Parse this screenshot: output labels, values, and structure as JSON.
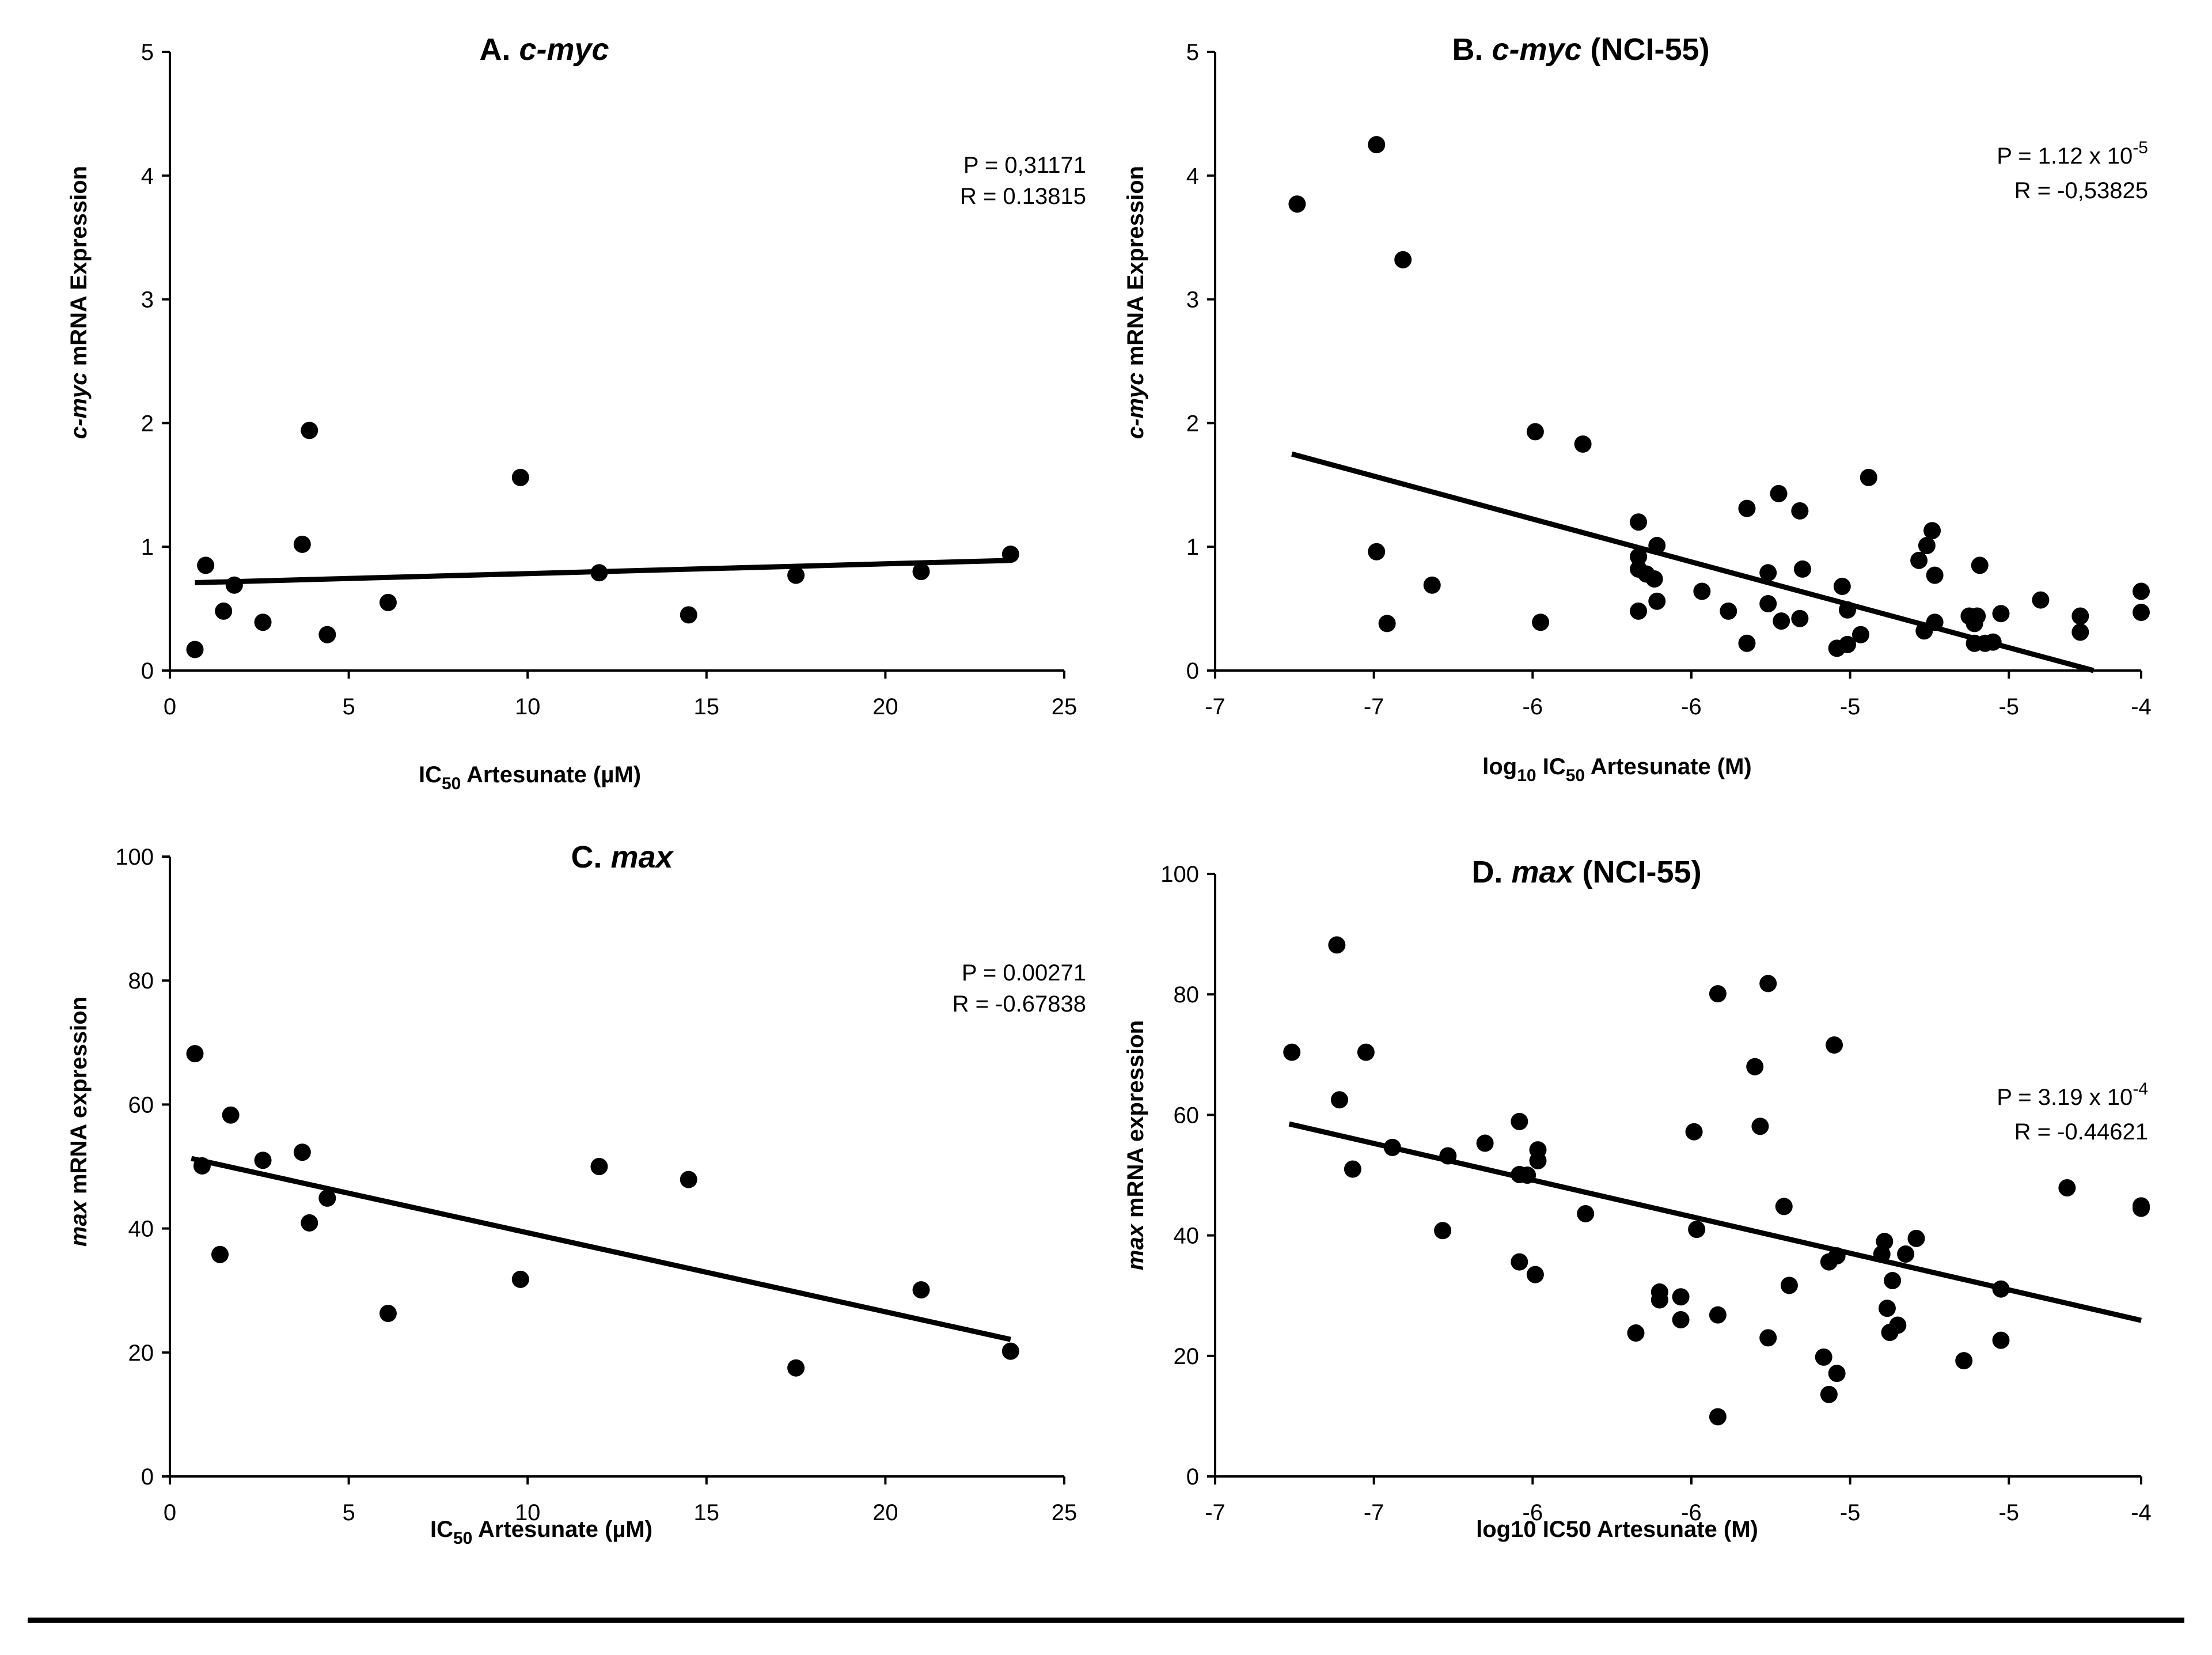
{
  "figure": {
    "colors": {
      "foreground": "#000000",
      "background": "#ffffff"
    }
  },
  "chart_data": [
    {
      "id": "A",
      "type": "scatter",
      "title": {
        "prefix": "A. ",
        "gene": "c-myc",
        "suffix": ""
      },
      "ylabel": {
        "gene": "c-myc",
        "rest": " mRNA Expression"
      },
      "xlabel": {
        "pre": "IC",
        "sub": "50",
        "post": " Artesunate (µM)"
      },
      "stats": {
        "p": "P = 0,31171",
        "r": "R = 0.13815"
      },
      "xlim": [
        0,
        25
      ],
      "ylim": [
        0,
        5
      ],
      "xticks": [
        0,
        5,
        10,
        15,
        20,
        25
      ],
      "xtick_labels": [
        "0",
        "5",
        "10",
        "15",
        "20",
        "25"
      ],
      "yticks": [
        0,
        1,
        2,
        3,
        4,
        5
      ],
      "ytick_labels": [
        "0",
        "1",
        "2",
        "3",
        "4",
        "5"
      ],
      "points": [
        [
          0.7,
          0.17
        ],
        [
          1.0,
          0.85
        ],
        [
          1.5,
          0.48
        ],
        [
          1.8,
          0.69
        ],
        [
          2.6,
          0.39
        ],
        [
          3.7,
          1.02
        ],
        [
          3.9,
          1.94
        ],
        [
          4.4,
          0.29
        ],
        [
          6.1,
          0.55
        ],
        [
          9.8,
          1.56
        ],
        [
          12.0,
          0.79
        ],
        [
          14.5,
          0.45
        ],
        [
          17.5,
          0.77
        ],
        [
          21.0,
          0.8
        ],
        [
          23.5,
          0.94
        ]
      ],
      "trendline": [
        [
          0.7,
          0.71
        ],
        [
          23.5,
          0.89
        ]
      ]
    },
    {
      "id": "B",
      "type": "scatter",
      "title": {
        "prefix": "B. ",
        "gene": "c-myc",
        "suffix": " (NCI-55)"
      },
      "ylabel": {
        "gene": "c-myc",
        "rest": " mRNA Expression"
      },
      "xlabel": {
        "pre": "log",
        "sub": "10",
        "mid": " IC",
        "sub2": "50",
        "post": " Artesunate (M)"
      },
      "stats": {
        "p": "P = 1.12 x 10",
        "p_exp": "-5",
        "r": "R = -0,53825"
      },
      "xlim": [
        -7.5,
        -4.0
      ],
      "ylim": [
        0,
        5
      ],
      "xticks": [
        -7.5,
        -6.9,
        -6.3,
        -5.7,
        -5.1,
        -4.5,
        -4.0
      ],
      "xtick_labels": [
        "-7",
        "-7",
        "-6",
        "-6",
        "-5",
        "-5",
        "-4"
      ],
      "yticks": [
        0,
        1,
        2,
        3,
        4,
        5
      ],
      "ytick_labels": [
        "0",
        "1",
        "2",
        "3",
        "4",
        "5"
      ],
      "points": [
        [
          -7.19,
          3.77
        ],
        [
          -6.89,
          4.25
        ],
        [
          -6.79,
          3.32
        ],
        [
          -6.29,
          1.93
        ],
        [
          -6.11,
          1.83
        ],
        [
          -6.89,
          0.96
        ],
        [
          -6.85,
          0.38
        ],
        [
          -6.68,
          0.69
        ],
        [
          -6.27,
          0.39
        ],
        [
          -5.9,
          1.2
        ],
        [
          -5.9,
          0.92
        ],
        [
          -5.9,
          0.82
        ],
        [
          -5.9,
          0.48
        ],
        [
          -5.87,
          0.78
        ],
        [
          -5.84,
          0.74
        ],
        [
          -5.83,
          1.01
        ],
        [
          -5.83,
          0.56
        ],
        [
          -5.66,
          0.64
        ],
        [
          -5.56,
          0.48
        ],
        [
          -5.49,
          1.31
        ],
        [
          -5.49,
          0.22
        ],
        [
          -5.41,
          0.79
        ],
        [
          -5.41,
          0.54
        ],
        [
          -5.37,
          1.43
        ],
        [
          -5.36,
          0.4
        ],
        [
          -5.29,
          1.29
        ],
        [
          -5.29,
          0.42
        ],
        [
          -5.28,
          0.82
        ],
        [
          -5.15,
          0.18
        ],
        [
          -5.13,
          0.68
        ],
        [
          -5.11,
          0.21
        ],
        [
          -5.11,
          0.49
        ],
        [
          -5.06,
          0.29
        ],
        [
          -5.03,
          1.56
        ],
        [
          -4.84,
          0.89
        ],
        [
          -4.82,
          0.32
        ],
        [
          -4.81,
          1.01
        ],
        [
          -4.79,
          1.13
        ],
        [
          -4.78,
          0.77
        ],
        [
          -4.78,
          0.39
        ],
        [
          -4.65,
          0.44
        ],
        [
          -4.63,
          0.38
        ],
        [
          -4.63,
          0.22
        ],
        [
          -4.62,
          0.44
        ],
        [
          -4.61,
          0.85
        ],
        [
          -4.59,
          0.22
        ],
        [
          -4.56,
          0.23
        ],
        [
          -4.53,
          0.46
        ],
        [
          -4.38,
          0.57
        ],
        [
          -4.23,
          0.44
        ],
        [
          -4.23,
          0.31
        ],
        [
          -4.0,
          0.64
        ],
        [
          -4.0,
          0.47
        ]
      ],
      "trendline": [
        [
          -7.21,
          1.75
        ],
        [
          -4.18,
          0.0
        ]
      ]
    },
    {
      "id": "C",
      "type": "scatter",
      "title": {
        "prefix": "C. ",
        "gene": "max",
        "suffix": ""
      },
      "ylabel": {
        "gene": "max",
        "rest": " mRNA expression"
      },
      "xlabel": {
        "pre": "IC",
        "sub": "50",
        "post": " Artesunate (µM)"
      },
      "stats": {
        "p": "P = 0.00271",
        "r": "R = -0.67838"
      },
      "xlim": [
        0,
        25
      ],
      "ylim": [
        0,
        100
      ],
      "xticks": [
        0,
        5,
        10,
        15,
        20,
        25
      ],
      "xtick_labels": [
        "0",
        "5",
        "10",
        "15",
        "20",
        "25"
      ],
      "yticks": [
        0,
        20,
        40,
        60,
        80,
        100
      ],
      "ytick_labels": [
        "0",
        "20",
        "40",
        "60",
        "80",
        "100"
      ],
      "points": [
        [
          0.7,
          68.2
        ],
        [
          0.9,
          50.1
        ],
        [
          1.4,
          35.8
        ],
        [
          1.7,
          58.3
        ],
        [
          2.6,
          51.0
        ],
        [
          3.7,
          52.3
        ],
        [
          3.9,
          40.9
        ],
        [
          4.4,
          44.9
        ],
        [
          6.1,
          26.3
        ],
        [
          9.8,
          31.8
        ],
        [
          12.0,
          50.0
        ],
        [
          14.5,
          47.9
        ],
        [
          17.5,
          17.5
        ],
        [
          21.0,
          30.1
        ],
        [
          23.5,
          20.2
        ]
      ],
      "trendline": [
        [
          0.6,
          51.3
        ],
        [
          23.5,
          22.1
        ]
      ]
    },
    {
      "id": "D",
      "type": "scatter",
      "title": {
        "prefix": "D. ",
        "gene": "max",
        "suffix": " (NCI-55)"
      },
      "ylabel": {
        "gene": "max",
        "rest": " mRNA expression"
      },
      "xlabel": {
        "pre": "log10 IC50 Artesunate (M)"
      },
      "stats": {
        "p": "P = 3.19 x 10",
        "p_exp": "-4",
        "r": "R = -0.44621"
      },
      "xlim": [
        -7.5,
        -4.0
      ],
      "ylim": [
        0,
        100
      ],
      "xticks": [
        -7.5,
        -6.9,
        -6.3,
        -5.7,
        -5.1,
        -4.5,
        -4.0
      ],
      "xtick_labels": [
        "-7",
        "-7",
        "-6",
        "-6",
        "-5",
        "-5",
        "-4"
      ],
      "yticks": [
        0,
        20,
        40,
        60,
        80,
        100
      ],
      "ytick_labels": [
        "0",
        "20",
        "40",
        "60",
        "80",
        "100"
      ],
      "points": [
        [
          -7.21,
          70.4
        ],
        [
          -7.04,
          88.2
        ],
        [
          -7.03,
          62.5
        ],
        [
          -6.98,
          51.0
        ],
        [
          -6.93,
          70.4
        ],
        [
          -6.83,
          54.6
        ],
        [
          -6.64,
          40.8
        ],
        [
          -6.62,
          53.2
        ],
        [
          -6.48,
          55.3
        ],
        [
          -6.35,
          58.9
        ],
        [
          -6.35,
          50.1
        ],
        [
          -6.35,
          35.6
        ],
        [
          -6.32,
          50.0
        ],
        [
          -6.29,
          33.5
        ],
        [
          -6.28,
          54.2
        ],
        [
          -6.28,
          52.4
        ],
        [
          -6.1,
          43.6
        ],
        [
          -5.91,
          23.8
        ],
        [
          -5.82,
          30.6
        ],
        [
          -5.82,
          29.3
        ],
        [
          -5.74,
          29.8
        ],
        [
          -5.74,
          26.0
        ],
        [
          -5.69,
          57.2
        ],
        [
          -5.68,
          41.0
        ],
        [
          -5.6,
          80.1
        ],
        [
          -5.6,
          26.8
        ],
        [
          -5.6,
          9.9
        ],
        [
          -5.46,
          68.0
        ],
        [
          -5.44,
          58.1
        ],
        [
          -5.41,
          81.8
        ],
        [
          -5.41,
          23.0
        ],
        [
          -5.35,
          44.8
        ],
        [
          -5.33,
          31.7
        ],
        [
          -5.2,
          19.8
        ],
        [
          -5.18,
          35.6
        ],
        [
          -5.18,
          13.6
        ],
        [
          -5.16,
          71.6
        ],
        [
          -5.15,
          36.6
        ],
        [
          -5.15,
          17.1
        ],
        [
          -4.98,
          36.9
        ],
        [
          -4.97,
          39.0
        ],
        [
          -4.96,
          27.9
        ],
        [
          -4.95,
          23.9
        ],
        [
          -4.94,
          32.5
        ],
        [
          -4.92,
          25.1
        ],
        [
          -4.89,
          36.9
        ],
        [
          -4.85,
          39.5
        ],
        [
          -4.67,
          19.2
        ],
        [
          -4.53,
          31.1
        ],
        [
          -4.53,
          22.6
        ],
        [
          -4.28,
          47.9
        ],
        [
          -4.0,
          44.9
        ],
        [
          -4.0,
          44.5
        ]
      ],
      "trendline": [
        [
          -7.22,
          58.5
        ],
        [
          -4.0,
          25.9
        ]
      ]
    }
  ]
}
